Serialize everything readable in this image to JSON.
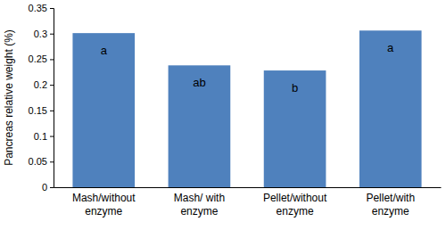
{
  "chart_data": {
    "type": "bar",
    "y_label": "Pancreas relative weight (%)",
    "categories": [
      "Mash/without enzyme",
      "Mash/ with enzyme",
      "Pellet/without enzyme",
      "Pellet/with enzyme"
    ],
    "values": [
      0.301,
      0.238,
      0.228,
      0.306
    ],
    "annotations": [
      "a",
      "ab",
      "b",
      "a"
    ],
    "color": "#4f81bd",
    "ylim": [
      0,
      0.35
    ],
    "yticks": [
      0,
      0.05,
      0.1,
      0.15,
      0.2,
      0.25,
      0.3,
      0.35
    ],
    "grid": false
  }
}
